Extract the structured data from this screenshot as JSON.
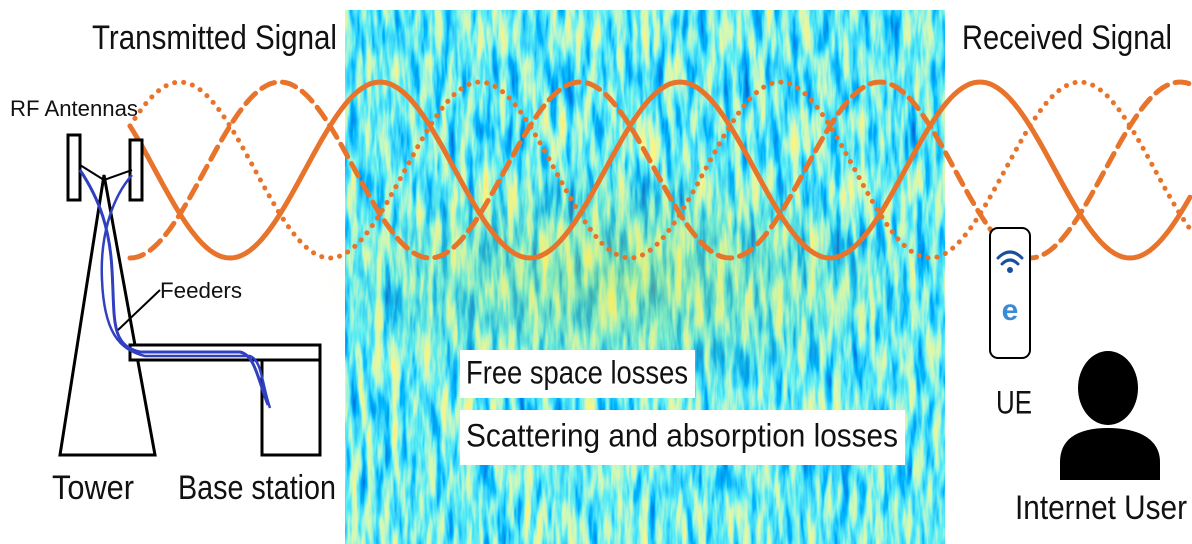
{
  "header": {
    "left": "Transmitted Signal",
    "right": "Received Signal"
  },
  "labels": {
    "antennas": "RF Antennas",
    "feeders": "Feeders",
    "tower": "Tower",
    "base_station": "Base station",
    "ue": "UE",
    "user": "Internet User"
  },
  "losses": [
    "Free space losses",
    "Scattering and absorption losses"
  ]
}
